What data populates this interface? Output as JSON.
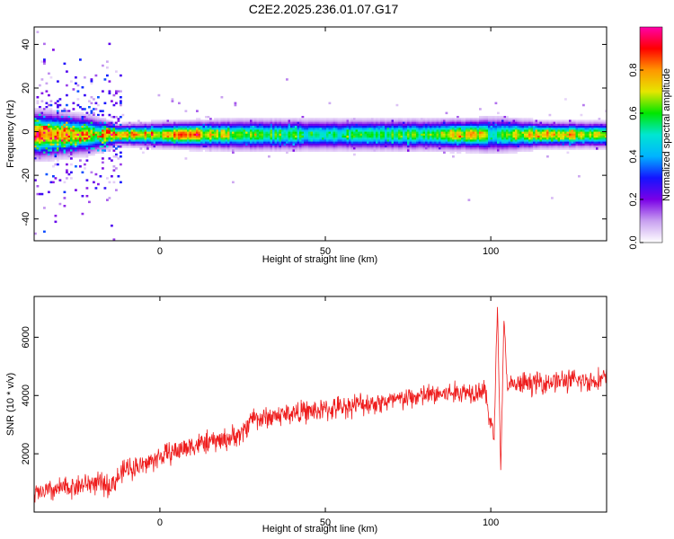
{
  "figure": {
    "title": "C2E2.2025.236.01.07.G17"
  },
  "chart_data": [
    {
      "type": "heatmap",
      "xlabel": "Height of straight line (km)",
      "ylabel": "Frequency (Hz)",
      "xlim": [
        -38,
        135
      ],
      "ylim": [
        -50,
        48
      ],
      "xticks": [
        0,
        50,
        100
      ],
      "yticks": [
        -40,
        -20,
        0,
        20,
        40
      ],
      "grid": false,
      "colorbar": {
        "label": "Normalized spectral amplitude",
        "range": [
          0.0,
          1.0
        ],
        "ticks": [
          0.0,
          0.2,
          0.4,
          0.6,
          0.8
        ],
        "colormap": [
          "#ffffff",
          "#c8a0f0",
          "#7a00e6",
          "#1414ff",
          "#00b4ff",
          "#00e6d2",
          "#00e600",
          "#e6e600",
          "#ff9600",
          "#ff0000",
          "#ff00aa"
        ]
      },
      "band": {
        "center_frequency": -1,
        "description_points": [
          {
            "x": -35,
            "width_hz": 9,
            "peak": 0.9
          },
          {
            "x": -20,
            "width_hz": 7,
            "peak": 0.7
          },
          {
            "x": -13,
            "width_hz": 4,
            "peak": 0.9
          },
          {
            "x": 0,
            "width_hz": 5,
            "peak": 0.8
          },
          {
            "x": 5,
            "width_hz": 5,
            "peak": 0.95
          },
          {
            "x": 25,
            "width_hz": 6,
            "peak": 0.7
          },
          {
            "x": 50,
            "width_hz": 6,
            "peak": 0.6
          },
          {
            "x": 80,
            "width_hz": 6,
            "peak": 0.7
          },
          {
            "x": 95,
            "width_hz": 6,
            "peak": 0.85
          },
          {
            "x": 100,
            "width_hz": 7,
            "peak": 0.6
          },
          {
            "x": 115,
            "width_hz": 5,
            "peak": 0.9
          },
          {
            "x": 135,
            "width_hz": 5,
            "peak": 0.75
          }
        ]
      }
    },
    {
      "type": "line",
      "xlabel": "Height of straight line (km)",
      "ylabel": "SNR (10 * v/v)",
      "xlim": [
        -38,
        135
      ],
      "ylim": [
        0,
        7400
      ],
      "xticks": [
        0,
        50,
        100
      ],
      "yticks": [
        2000,
        4000,
        6000
      ],
      "grid": false,
      "series": [
        {
          "color": "#ee1c1c",
          "x": [
            -38,
            -30,
            -20,
            -15,
            -10,
            -5,
            0,
            5,
            10,
            15,
            20,
            25,
            28,
            30,
            40,
            50,
            60,
            70,
            80,
            90,
            98,
            101,
            102,
            103,
            104,
            105,
            110,
            120,
            130,
            135
          ],
          "y": [
            600,
            800,
            1000,
            900,
            1500,
            1600,
            1900,
            2100,
            2300,
            2400,
            2500,
            2700,
            3300,
            3200,
            3400,
            3500,
            3700,
            3800,
            4000,
            4100,
            4200,
            2500,
            7200,
            1500,
            6600,
            4300,
            4400,
            4500,
            4500,
            4600
          ],
          "noise_amplitude": 700
        }
      ]
    }
  ]
}
